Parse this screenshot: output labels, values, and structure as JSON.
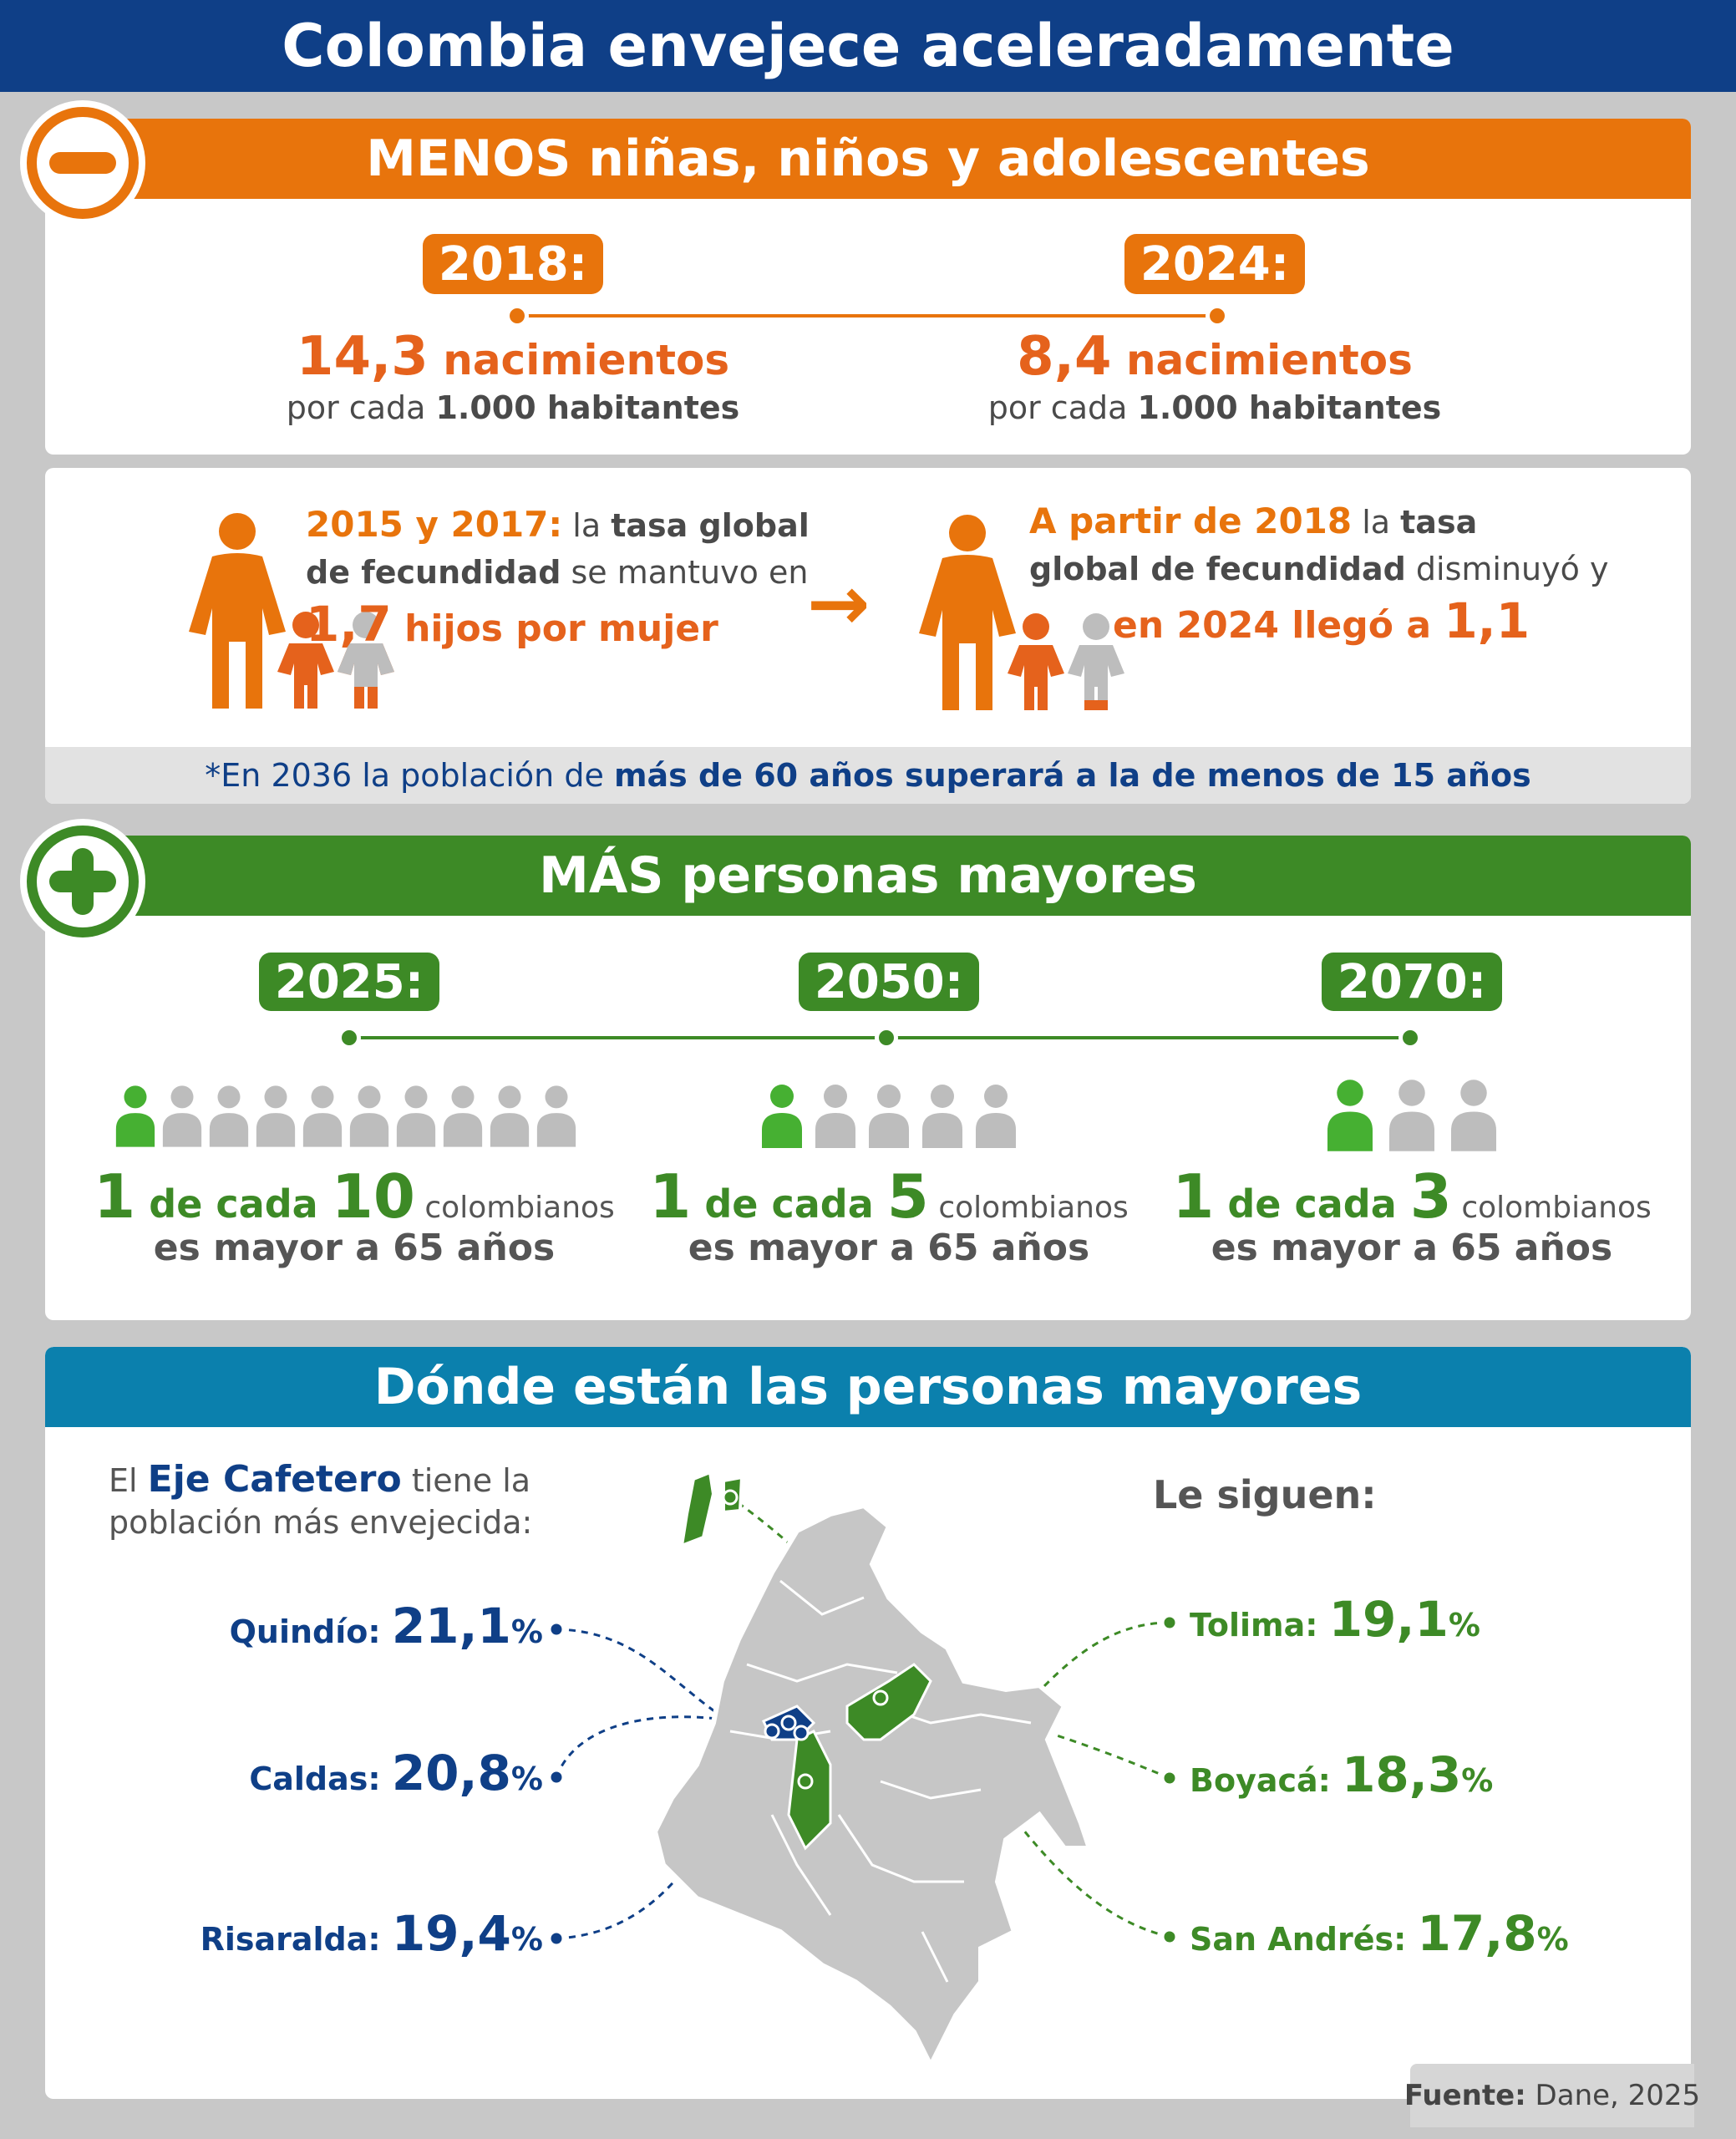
{
  "title": "Colombia envejece aceleradamente",
  "menos": {
    "header_bold": "MENOS",
    "header_rest": " niñas, niños y adolescentes",
    "years": [
      {
        "year": "2018:",
        "number": "14,3",
        "unit": " nacimientos",
        "sub_a": "por cada ",
        "sub_b": "1.000 habitantes"
      },
      {
        "year": "2024:",
        "number": "8,4",
        "unit": " nacimientos",
        "sub_a": "por cada ",
        "sub_b": "1.000 habitantes"
      }
    ],
    "fecundidad_left": {
      "l1_a": "2015 y 2017:",
      "l1_b": " la ",
      "l1_c": "tasa global",
      "l2_a": "de fecundidad",
      "l2_b": " se mantuvo en",
      "l3_num": "1,7",
      "l3_rest": " hijos por mujer"
    },
    "fecundidad_right": {
      "l1_a": "A partir de 2018",
      "l1_b": " la ",
      "l1_c": "tasa",
      "l2_a": "global de fecundidad",
      "l2_b": " disminuyó y",
      "l3_a": "en 2024 llegó a ",
      "l3_num": "1,1"
    },
    "arrow": "→",
    "note_a": "*En 2036 la población de ",
    "note_b": "más de 60 años superará a la de menos de 15 años"
  },
  "mas": {
    "header_bold": "MÁS",
    "header_rest": " personas mayores",
    "years": [
      {
        "year": "2025:",
        "n1": "1",
        "mid": " de cada ",
        "n2": "10",
        "tail": " colombianos",
        "line2": "es mayor a 65 años",
        "people_total": 10
      },
      {
        "year": "2050:",
        "n1": "1",
        "mid": " de cada ",
        "n2": "5",
        "tail": " colombianos",
        "line2": "es mayor a 65 años",
        "people_total": 5
      },
      {
        "year": "2070:",
        "n1": "1",
        "mid": " de cada ",
        "n2": "3",
        "tail": " colombianos",
        "line2": "es mayor a 65 años",
        "people_total": 3
      }
    ]
  },
  "donde": {
    "header": "Dónde están las personas mayores",
    "intro_a": "El ",
    "intro_b": "Eje Cafetero",
    "intro_c": " tiene la",
    "intro_d": "población más envejecida:",
    "left": [
      {
        "name": "Quindío: ",
        "value": "21,1",
        "pct": "%"
      },
      {
        "name": "Caldas: ",
        "value": "20,8",
        "pct": "%"
      },
      {
        "name": "Risaralda: ",
        "value": "19,4",
        "pct": "%"
      }
    ],
    "siguen": "Le siguen:",
    "right": [
      {
        "name": "Tolima: ",
        "value": "19,1",
        "pct": "%"
      },
      {
        "name": "Boyacá: ",
        "value": "18,3",
        "pct": "%"
      },
      {
        "name": "San Andrés: ",
        "value": "17,8",
        "pct": "%"
      }
    ]
  },
  "source_label": "Fuente:",
  "source_value": " Dane, 2025",
  "colors": {
    "navy": "#0f3f87",
    "orange": "#e8740c",
    "green": "#3d8a26",
    "teal": "#0b80ad",
    "gray": "#c8c8c8"
  }
}
